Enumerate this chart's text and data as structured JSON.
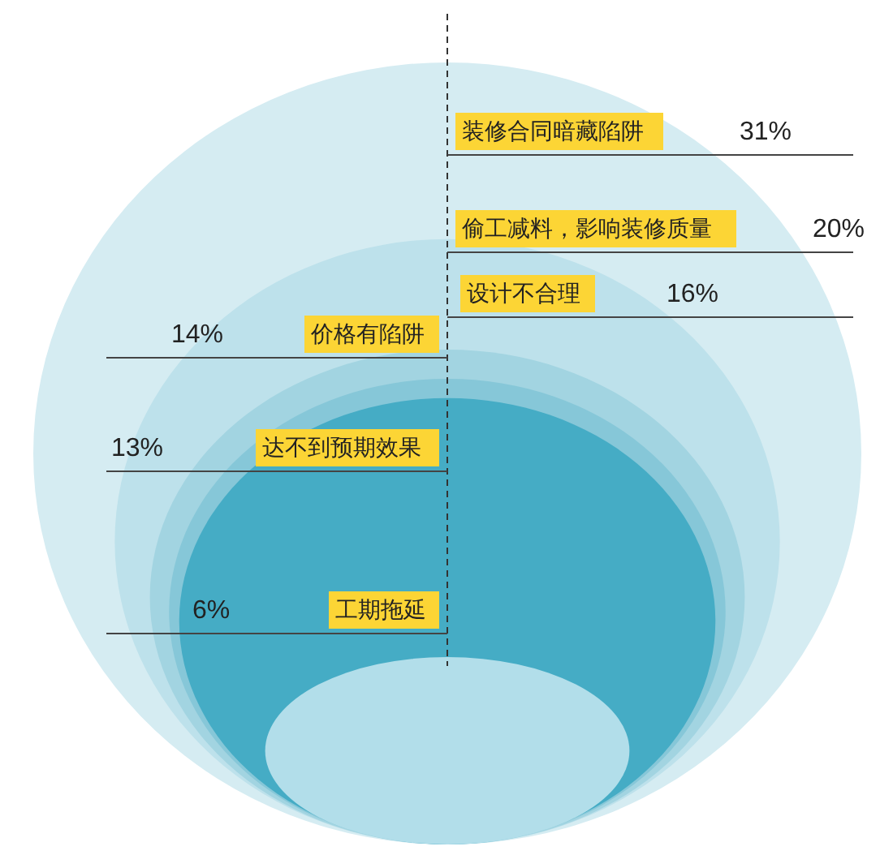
{
  "chart_data": {
    "type": "other",
    "categories": [
      "装修合同暗藏陷阱",
      "偷工减料，影响装修质量",
      "设计不合理",
      "价格有陷阱",
      "达不到预期效果",
      "工期拖延"
    ],
    "values": [
      31,
      20,
      16,
      14,
      13,
      6
    ],
    "value_labels": [
      "31%",
      "20%",
      "16%",
      "14%",
      "13%",
      "6%"
    ]
  }
}
